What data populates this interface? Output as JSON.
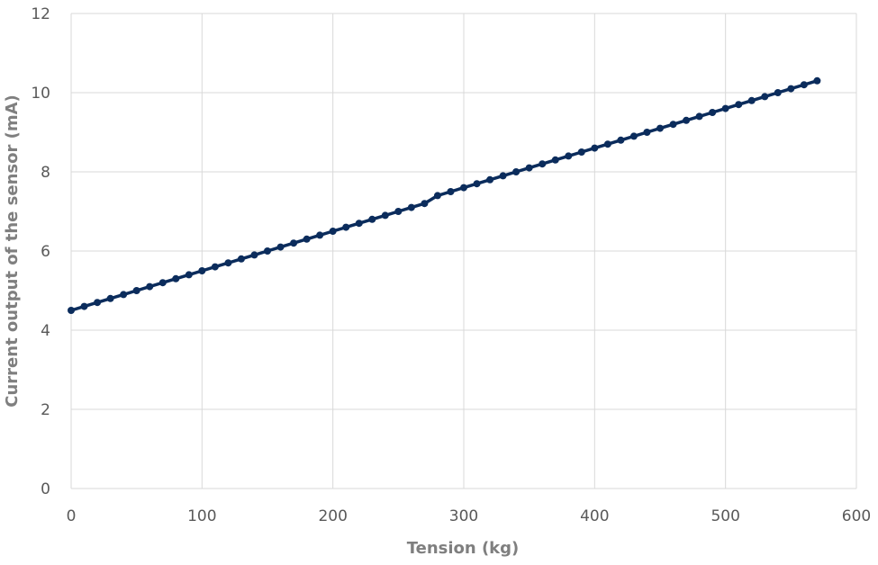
{
  "chart_data": {
    "type": "line",
    "title": "",
    "xlabel": "Tension (kg)",
    "ylabel": "Current output of the sensor (mA)",
    "xlim": [
      0,
      600
    ],
    "ylim": [
      0,
      12
    ],
    "xticks": [
      0,
      100,
      200,
      300,
      400,
      500,
      600
    ],
    "yticks": [
      0,
      2,
      4,
      6,
      8,
      10,
      12
    ],
    "grid": true,
    "legend": "none",
    "series": [
      {
        "color": "#0b2c5c",
        "marker": "circle",
        "x": [
          0,
          10,
          20,
          30,
          40,
          50,
          60,
          70,
          80,
          90,
          100,
          110,
          120,
          130,
          140,
          150,
          160,
          170,
          180,
          190,
          200,
          210,
          220,
          230,
          240,
          250,
          260,
          270,
          280,
          290,
          300,
          310,
          320,
          330,
          340,
          350,
          360,
          370,
          380,
          390,
          400,
          410,
          420,
          430,
          440,
          450,
          460,
          470,
          480,
          490,
          500,
          510,
          520,
          530,
          540,
          550,
          560,
          570
        ],
        "y": [
          4.5,
          4.6,
          4.7,
          4.8,
          4.9,
          5.0,
          5.1,
          5.2,
          5.3,
          5.4,
          5.5,
          5.6,
          5.7,
          5.8,
          5.9,
          6.0,
          6.1,
          6.2,
          6.3,
          6.4,
          6.5,
          6.6,
          6.7,
          6.8,
          6.9,
          7.0,
          7.1,
          7.2,
          7.4,
          7.5,
          7.6,
          7.7,
          7.8,
          7.9,
          8.0,
          8.1,
          8.2,
          8.3,
          8.4,
          8.5,
          8.6,
          8.7,
          8.8,
          8.9,
          9.0,
          9.1,
          9.2,
          9.3,
          9.4,
          9.5,
          9.6,
          9.7,
          9.8,
          9.9,
          10.0,
          10.1,
          10.2,
          10.3
        ]
      }
    ]
  }
}
